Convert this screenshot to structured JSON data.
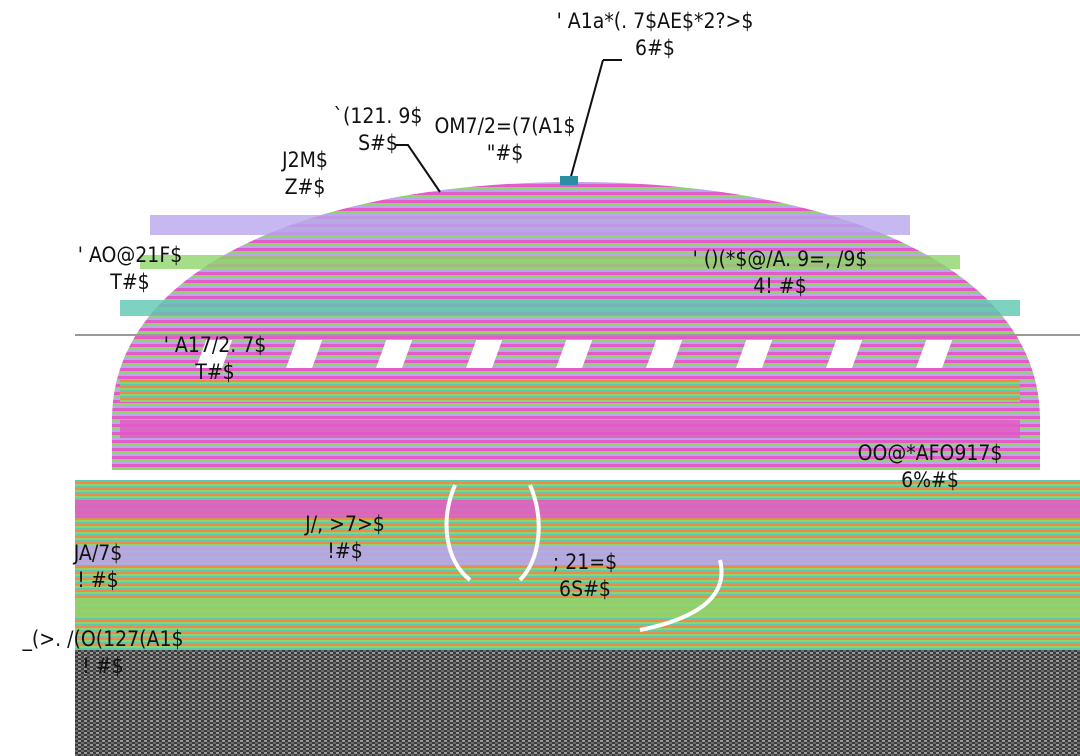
{
  "labels": [
    {
      "id": "top-right",
      "line1": "' A1a*(. 7$AE$*2?>$",
      "line2": "6#$"
    },
    {
      "id": "upper-center",
      "line1": "OM7/2=(7(A1$",
      "line2": "\"#$"
    },
    {
      "id": "upper-left-a",
      "line1": "`(121. 9$",
      "line2": "S#$"
    },
    {
      "id": "upper-left-b",
      "line1": "J2M$",
      "line2": "Z#$"
    },
    {
      "id": "left-mid",
      "line1": "' AO@21F$",
      "line2": "T#$"
    },
    {
      "id": "right-mid",
      "line1": "' ()(*$@/A. 9=, /9$",
      "line2": "4! #$"
    },
    {
      "id": "left-band",
      "line1": "' A17/2. 7$",
      "line2": "T#$"
    },
    {
      "id": "right-lower",
      "line1": "OO@*AFO917$",
      "line2": "6%#$"
    },
    {
      "id": "center-left",
      "line1": "J/, >7>$",
      "line2": "!#$"
    },
    {
      "id": "left-low",
      "line1": "JA/7$",
      "line2": "! #$"
    },
    {
      "id": "center",
      "line1": "; 21=$",
      "line2": "6S#$"
    },
    {
      "id": "bottom-left",
      "line1": "_(>. /(O(127(A1$",
      "line2": "! #$"
    }
  ],
  "colors": {
    "pink": "#e25bc8",
    "green": "#8fd46a",
    "teal": "#5cc8b0",
    "lavender": "#b9a6ef",
    "orange": "#f08a4a",
    "dark": "#2a2a2a"
  }
}
